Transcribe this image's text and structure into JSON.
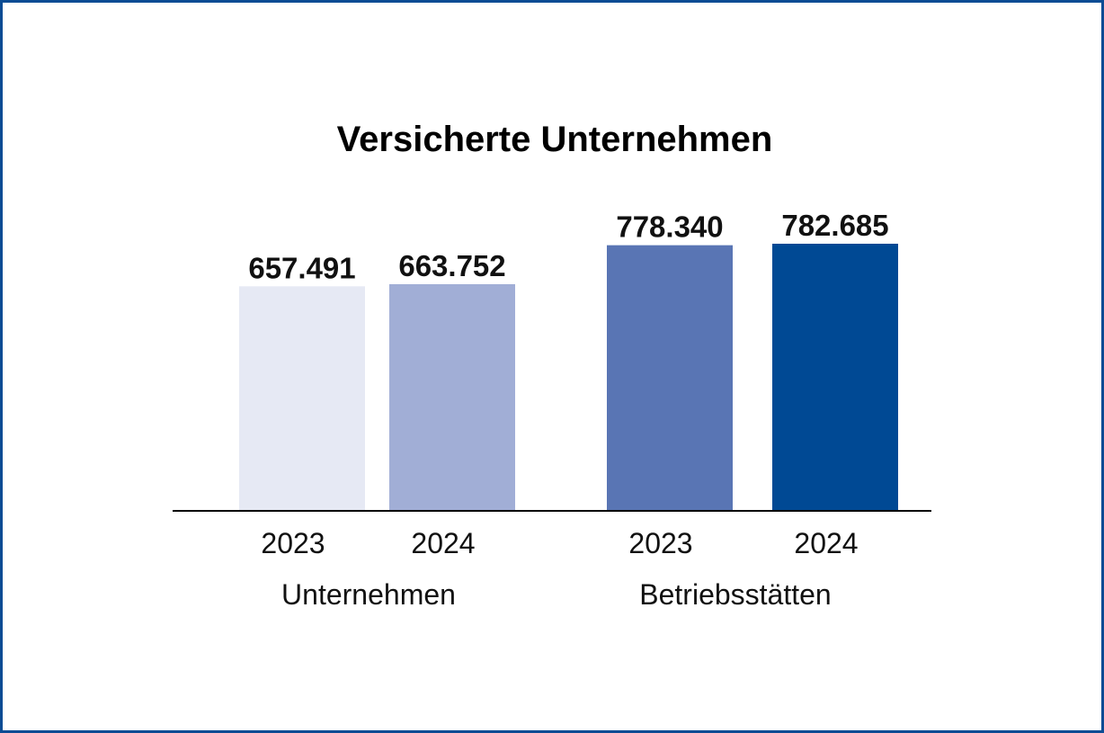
{
  "chart_data": {
    "type": "bar",
    "title": "Versicherte Unternehmen",
    "xlabel": "",
    "ylabel": "",
    "groups": [
      "Unternehmen",
      "Betriebsstätten"
    ],
    "categories": [
      "2023",
      "2024",
      "2023",
      "2024"
    ],
    "values": [
      657491,
      663752,
      778340,
      782685
    ],
    "value_labels": [
      "657.491",
      "663.752",
      "778.340",
      "782.685"
    ],
    "colors": [
      "#e6e9f4",
      "#a1aed6",
      "#5975b4",
      "#004994"
    ],
    "grid": false,
    "legend": "none"
  }
}
